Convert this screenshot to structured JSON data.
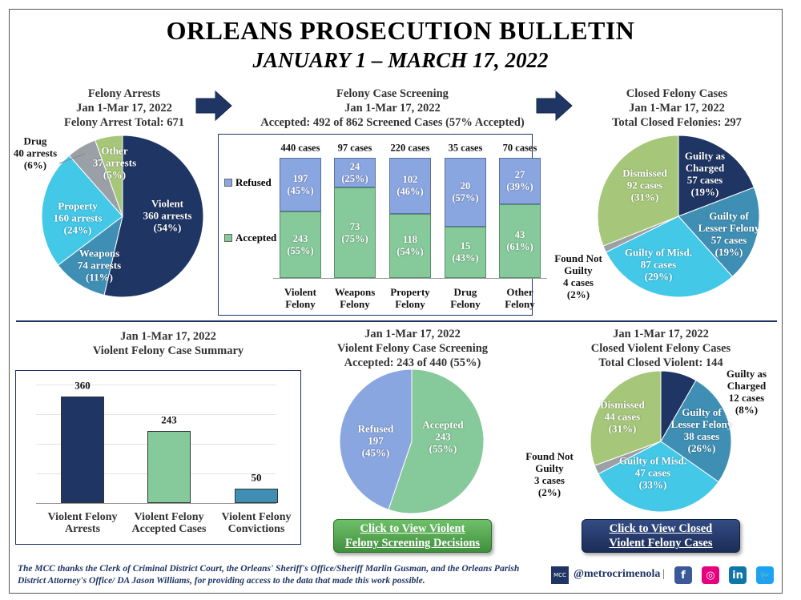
{
  "header": {
    "title": "ORLEANS PROSECUTION BULLETIN",
    "subtitle": "JANUARY 1 – MARCH 17, 2022"
  },
  "colors": {
    "navy": "#1f3564",
    "steel": "#3f8fb5",
    "cyan": "#44c8e8",
    "gray": "#9aa0a6",
    "olive": "#a6c77a",
    "green": "#86c99a",
    "periwinkle": "#8aa6e0"
  },
  "sections": {
    "arrests_heading": "Felony Arrests\nJan 1-Mar 17, 2022\nFelony Arrest Total: 671",
    "screening_heading": "Felony Case Screening\nJan 1-Mar 17, 2022\nAccepted: 492 of 862 Screened Cases (57% Accepted)",
    "closed_heading": "Closed Felony Cases\nJan 1-Mar 17, 2022\nTotal Closed Felonies: 297",
    "violent_summary_heading": "Jan 1-Mar 17, 2022\nViolent Felony Case Summary",
    "violent_screening_heading": "Jan 1-Mar 17, 2022\nViolent Felony Case Screening\nAccepted: 243 of 440 (55%)",
    "closed_violent_heading": "Jan 1-Mar 17, 2022\nClosed Violent Felony Cases\nTotal Closed Violent: 144"
  },
  "chart_data": [
    {
      "type": "pie",
      "id": "arrests",
      "slices": [
        {
          "name": "Violent",
          "value": 360,
          "label": "Violent\n360 arrests\n(54%)",
          "color": "#1f3564"
        },
        {
          "name": "Weapons",
          "value": 74,
          "label": "Weapons\n74 arrests\n(11%)",
          "color": "#3f8fb5"
        },
        {
          "name": "Property",
          "value": 160,
          "label": "Property\n160 arrests\n(24%)",
          "color": "#44c8e8"
        },
        {
          "name": "Drug",
          "value": 40,
          "label": "Drug\n40 arrests\n(6%)",
          "color": "#9aa0a6"
        },
        {
          "name": "Other",
          "value": 37,
          "label": "Other\n37 arrests\n(5%)",
          "color": "#a6c77a"
        }
      ]
    },
    {
      "type": "bar",
      "id": "screening",
      "stacked": true,
      "categories": [
        "Violent\nFelony",
        "Weapons\nFelony",
        "Property\nFelony",
        "Drug\nFelony",
        "Other\nFelony"
      ],
      "totals": [
        "440 cases",
        "97 cases",
        "220 cases",
        "35 cases",
        "70 cases"
      ],
      "legend": [
        "Refused",
        "Accepted"
      ],
      "series": [
        {
          "name": "Refused",
          "color": "#8aa6e0",
          "values": [
            197,
            24,
            102,
            20,
            27
          ],
          "labels": [
            "197\n(45%)",
            "24\n(25%)",
            "102\n(46%)",
            "20\n(57%)",
            "27\n(39%)"
          ]
        },
        {
          "name": "Accepted",
          "color": "#86c99a",
          "values": [
            243,
            73,
            118,
            15,
            43
          ],
          "labels": [
            "243\n(55%)",
            "73\n(75%)",
            "118\n(54%)",
            "15\n(43%)",
            "43\n(61%)"
          ]
        }
      ]
    },
    {
      "type": "pie",
      "id": "closed",
      "slices": [
        {
          "name": "Guilty as Charged",
          "value": 57,
          "label": "Guilty as\nCharged\n57 cases\n(19%)",
          "color": "#1f3564"
        },
        {
          "name": "Guilty of Lesser Felony",
          "value": 57,
          "label": "Guilty of\nLesser Felony\n57 cases\n(19%)",
          "color": "#3f8fb5"
        },
        {
          "name": "Guilty of Misd.",
          "value": 87,
          "label": "Guilty of Misd.\n87 cases\n(29%)",
          "color": "#44c8e8"
        },
        {
          "name": "Found Not Guilty",
          "value": 4,
          "label": "Found Not\nGuilty\n4 cases\n(2%)",
          "color": "#9aa0a6"
        },
        {
          "name": "Dismissed",
          "value": 92,
          "label": "Dismissed\n92 cases\n(31%)",
          "color": "#a6c77a"
        }
      ]
    },
    {
      "type": "bar",
      "id": "violent_summary",
      "categories": [
        "Violent Felony\nArrests",
        "Violent Felony\nAccepted Cases",
        "Violent Felony\nConvictions"
      ],
      "values": [
        360,
        243,
        50
      ],
      "labels": [
        "360",
        "243",
        "50"
      ],
      "colors": [
        "#1f3564",
        "#86c99a",
        "#3f8fb5"
      ],
      "ylim": [
        0,
        400
      ],
      "grid": true
    },
    {
      "type": "pie",
      "id": "violent_screening",
      "slices": [
        {
          "name": "Accepted",
          "value": 243,
          "label": "Accepted\n243\n(55%)",
          "color": "#86c99a"
        },
        {
          "name": "Refused",
          "value": 197,
          "label": "Refused\n197\n(45%)",
          "color": "#8aa6e0"
        }
      ]
    },
    {
      "type": "pie",
      "id": "closed_violent",
      "slices": [
        {
          "name": "Guilty as Charged",
          "value": 12,
          "label": "Guilty as\nCharged\n12 cases\n(8%)",
          "color": "#1f3564"
        },
        {
          "name": "Guilty of Lesser Felony",
          "value": 38,
          "label": "Guilty of\nLesser Felony\n38 cases\n(26%)",
          "color": "#3f8fb5"
        },
        {
          "name": "Guilty of Misd.",
          "value": 47,
          "label": "Guilty of Misd.\n47 cases\n(33%)",
          "color": "#44c8e8"
        },
        {
          "name": "Found Not Guilty",
          "value": 3,
          "label": "Found Not\nGuilty\n3 cases\n(2%)",
          "color": "#9aa0a6"
        },
        {
          "name": "Dismissed",
          "value": 44,
          "label": "Dismissed\n44 cases\n(31%)",
          "color": "#a6c77a"
        }
      ]
    }
  ],
  "buttons": {
    "screening": "Click to View Violent\nFelony Screening Decisions",
    "closed": "Click to View Closed\nViolent Felony Cases"
  },
  "footer": {
    "text": "The MCC thanks the Clerk of Criminal District Court, the Orleans' Sheriff's Office/Sheriff Marlin Gusman, and the Orleans Parish District Attorney's Office/ DA Jason Williams, for providing access to the data that made this work possible.",
    "handle": "@metrocrimenola",
    "separator": "|",
    "logo": "MCC",
    "social": [
      {
        "icon": "facebook-icon",
        "glyph": "f",
        "color": "#3b5998"
      },
      {
        "icon": "instagram-icon",
        "glyph": "◎",
        "color": "#e6007e"
      },
      {
        "icon": "linkedin-icon",
        "glyph": "in",
        "color": "#0e76a8"
      },
      {
        "icon": "twitter-icon",
        "glyph": "🐦",
        "color": "#1da1f2"
      }
    ]
  }
}
